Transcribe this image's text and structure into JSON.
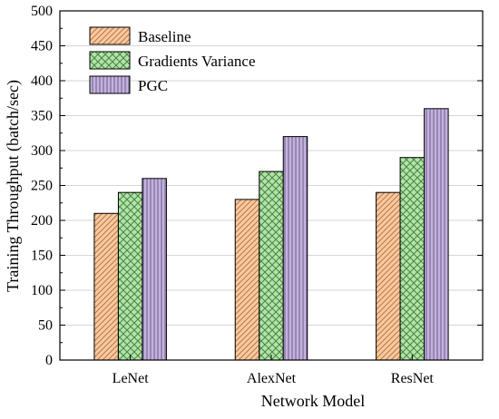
{
  "chart_data": {
    "type": "bar",
    "xlabel": "Network Model",
    "ylabel": "Training Throughput (batch/sec)",
    "categories": [
      "LeNet",
      "AlexNet",
      "ResNet"
    ],
    "ylim": [
      0,
      500
    ],
    "yticks": [
      0,
      50,
      100,
      150,
      200,
      250,
      300,
      350,
      400,
      450,
      500
    ],
    "grid": true,
    "legend_position": "top-left",
    "series": [
      {
        "name": "Baseline",
        "values": [
          210,
          230,
          240
        ],
        "color": "#f6c9a3",
        "hatch": "diagonal-lines"
      },
      {
        "name": "Gradients Variance",
        "values": [
          240,
          270,
          290
        ],
        "color": "#b6e0ac",
        "hatch": "crosshatch"
      },
      {
        "name": "PGC",
        "values": [
          260,
          320,
          360
        ],
        "color": "#c3b3db",
        "hatch": "vertical-lines"
      }
    ]
  }
}
